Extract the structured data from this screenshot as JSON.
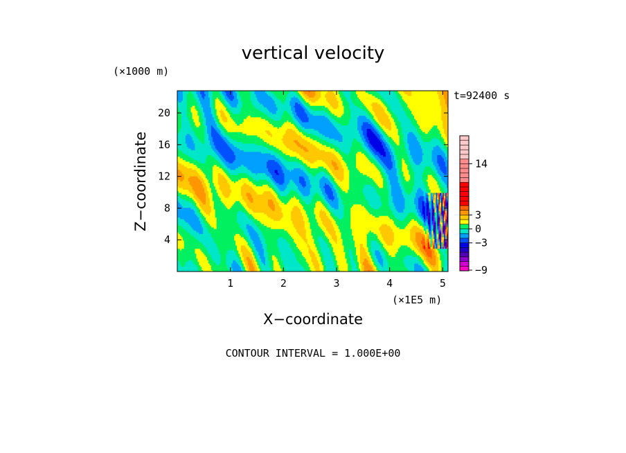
{
  "chart_data": {
    "type": "heatmap",
    "title": "vertical velocity",
    "time_label": "t=92400 s",
    "xlabel": "X−coordinate",
    "ylabel": "Z−coordinate",
    "x_unit": "(×1E5 m)",
    "y_unit": "(×1000 m)",
    "xlim": [
      0,
      5.1
    ],
    "ylim": [
      0,
      22.8
    ],
    "x_ticks": [
      1,
      2,
      3,
      4,
      5
    ],
    "y_ticks": [
      4,
      8,
      12,
      16,
      20
    ],
    "grid": false,
    "contour_interval_text": "CONTOUR INTERVAL = 1.000E+00",
    "colorbar": {
      "levels": [
        -9,
        -8,
        -7,
        -6,
        -5,
        -4,
        -3,
        -2,
        -1,
        0,
        1,
        2,
        3,
        4,
        5,
        6,
        7,
        8,
        9,
        10,
        11,
        12,
        13,
        14,
        15,
        16,
        17,
        18,
        19,
        20
      ],
      "tick_values": [
        14,
        3,
        0,
        -3,
        -9
      ],
      "tick_labels": [
        "14",
        "3",
        "0",
        "−3",
        "−9"
      ],
      "bands": [
        {
          "from": -9,
          "to": -8,
          "color": "#ff00c8"
        },
        {
          "from": -8,
          "to": -7,
          "color": "#d000d0"
        },
        {
          "from": -7,
          "to": -6,
          "color": "#8a00c8"
        },
        {
          "from": -6,
          "to": -5,
          "color": "#5000b4"
        },
        {
          "from": -5,
          "to": -4,
          "color": "#2000c8"
        },
        {
          "from": -4,
          "to": -3,
          "color": "#0000e6"
        },
        {
          "from": -3,
          "to": -2,
          "color": "#0050ff"
        },
        {
          "from": -2,
          "to": -1,
          "color": "#00a0ff"
        },
        {
          "from": -1,
          "to": 0,
          "color": "#00e6c8"
        },
        {
          "from": 0,
          "to": 1,
          "color": "#00f060"
        },
        {
          "from": 1,
          "to": 2,
          "color": "#ffff00"
        },
        {
          "from": 2,
          "to": 3,
          "color": "#ffc800"
        },
        {
          "from": 3,
          "to": 4,
          "color": "#ff9600"
        },
        {
          "from": 4,
          "to": 5,
          "color": "#ff6400"
        },
        {
          "from": 5,
          "to": 10,
          "color": "#ff0000"
        },
        {
          "from": 10,
          "to": 15,
          "color": "#ff8c8c"
        },
        {
          "from": 15,
          "to": 20,
          "color": "#ffc8c8"
        }
      ]
    },
    "field_summary": {
      "dominant_colors": [
        "#00f060",
        "#ffff00"
      ],
      "note_region_x": [
        4.6,
        5.1
      ],
      "note_region_z": [
        3,
        10
      ]
    }
  }
}
